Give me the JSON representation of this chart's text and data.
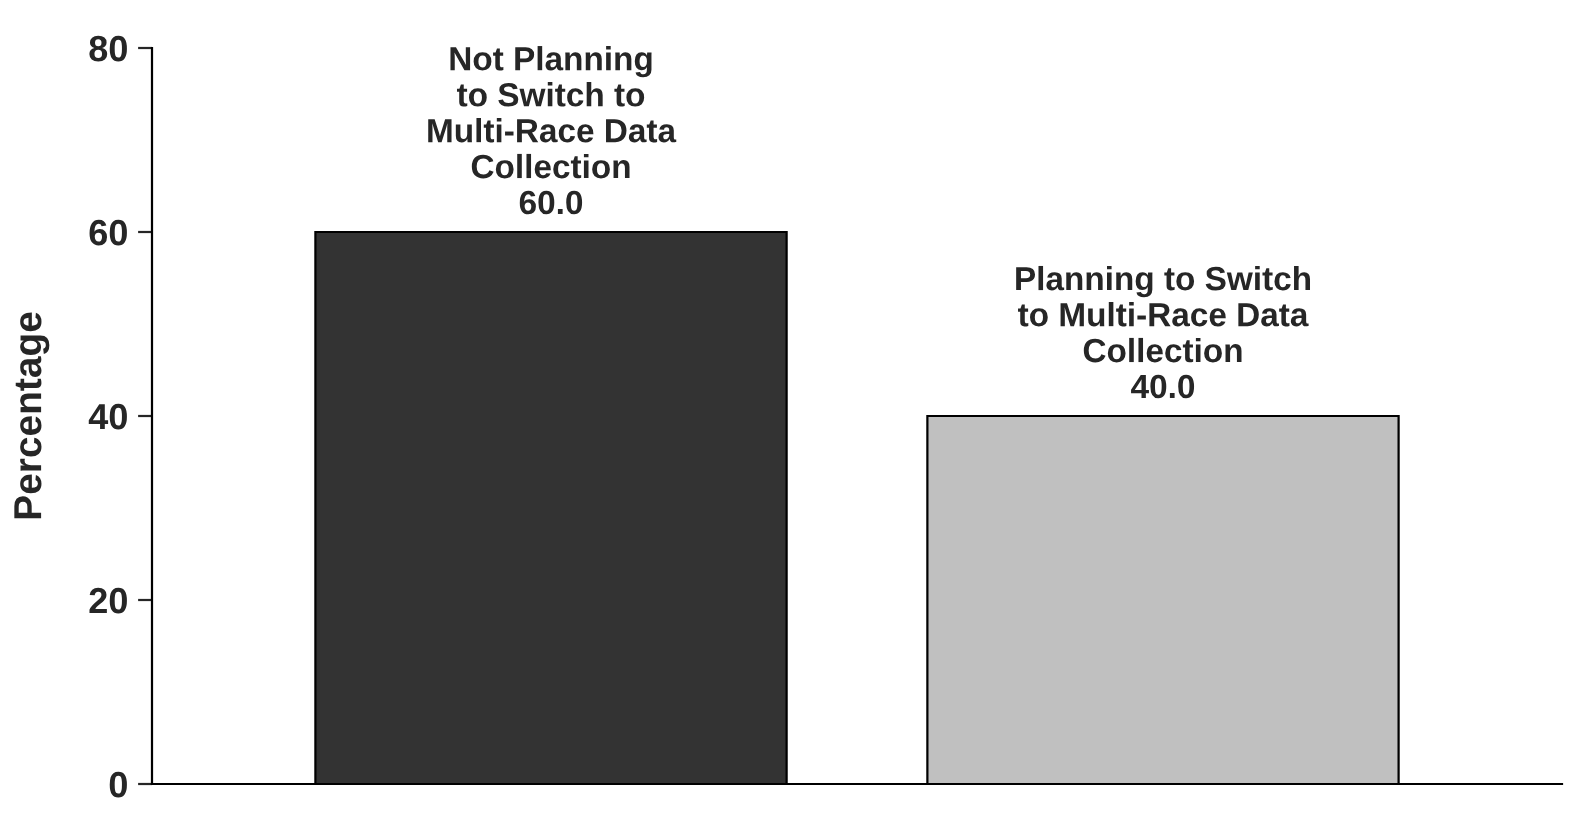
{
  "chart_data": {
    "type": "bar",
    "ylabel": "Percentage",
    "categories": [
      "Not Planning\nto Switch to\nMulti-Race Data\nCollection",
      "Planning to Switch\nto Multi-Race Data\nCollection"
    ],
    "values": [
      60,
      40
    ],
    "colors": [
      "#333333",
      "#c0c0c0"
    ],
    "value_labels": [
      "60.0",
      "40.0"
    ],
    "ylim": [
      0,
      80
    ],
    "yticks": [
      0,
      20,
      40,
      60,
      80
    ],
    "grid": false,
    "tick_labels": "y"
  }
}
